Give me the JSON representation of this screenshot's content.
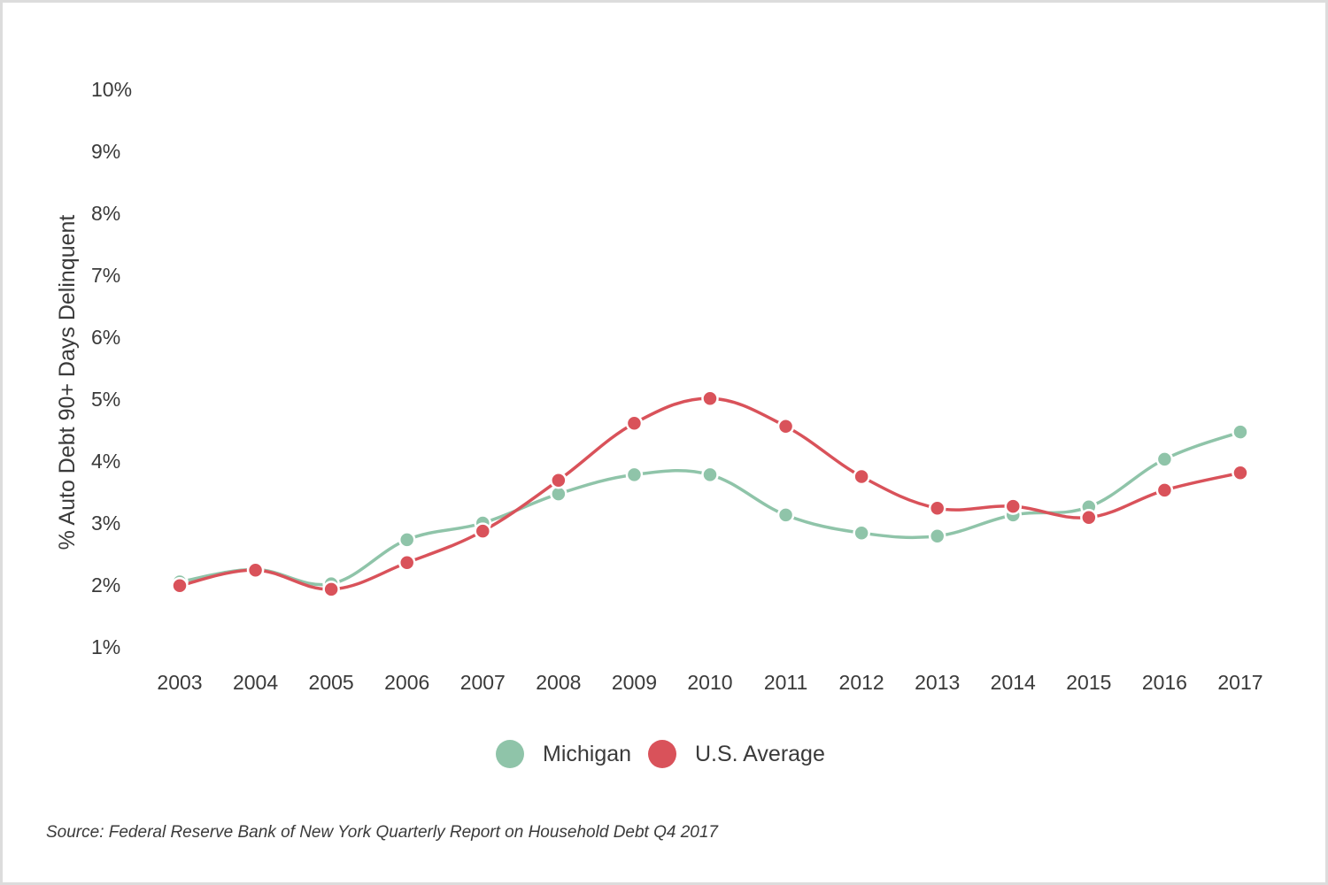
{
  "colors": {
    "michigan": "#8fc4a9",
    "us_average": "#d9525a",
    "border": "#dcdcdc",
    "text": "#3a3a3a"
  },
  "chart_data": {
    "type": "line",
    "smooth": true,
    "x": [
      "2003",
      "2004",
      "2005",
      "2006",
      "2007",
      "2008",
      "2009",
      "2010",
      "2011",
      "2012",
      "2013",
      "2014",
      "2015",
      "2016",
      "2017"
    ],
    "series": [
      {
        "name": "Michigan",
        "color": "#8fc4a9",
        "values": [
          2.05,
          2.25,
          2.02,
          2.73,
          3.0,
          3.47,
          3.78,
          3.78,
          3.13,
          2.84,
          2.79,
          3.13,
          3.26,
          4.03,
          4.47
        ]
      },
      {
        "name": "U.S. Average",
        "color": "#d9525a",
        "values": [
          1.99,
          2.24,
          1.93,
          2.36,
          2.87,
          3.69,
          4.61,
          5.01,
          4.56,
          3.75,
          3.24,
          3.27,
          3.09,
          3.53,
          3.81
        ]
      }
    ],
    "ylabel": "% Auto Debt 90+ Days Delinquent",
    "ylim": [
      1,
      10
    ],
    "yticks": [
      "10%",
      "9%",
      "8%",
      "7%",
      "6%",
      "5%",
      "4%",
      "3%",
      "2%",
      "1%"
    ],
    "grid": false,
    "legend": [
      "Michigan",
      "U.S. Average"
    ],
    "legend_position": "bottom-center"
  },
  "source_note": "Source: Federal Reserve Bank of New York Quarterly Report on Household Debt Q4 2017"
}
